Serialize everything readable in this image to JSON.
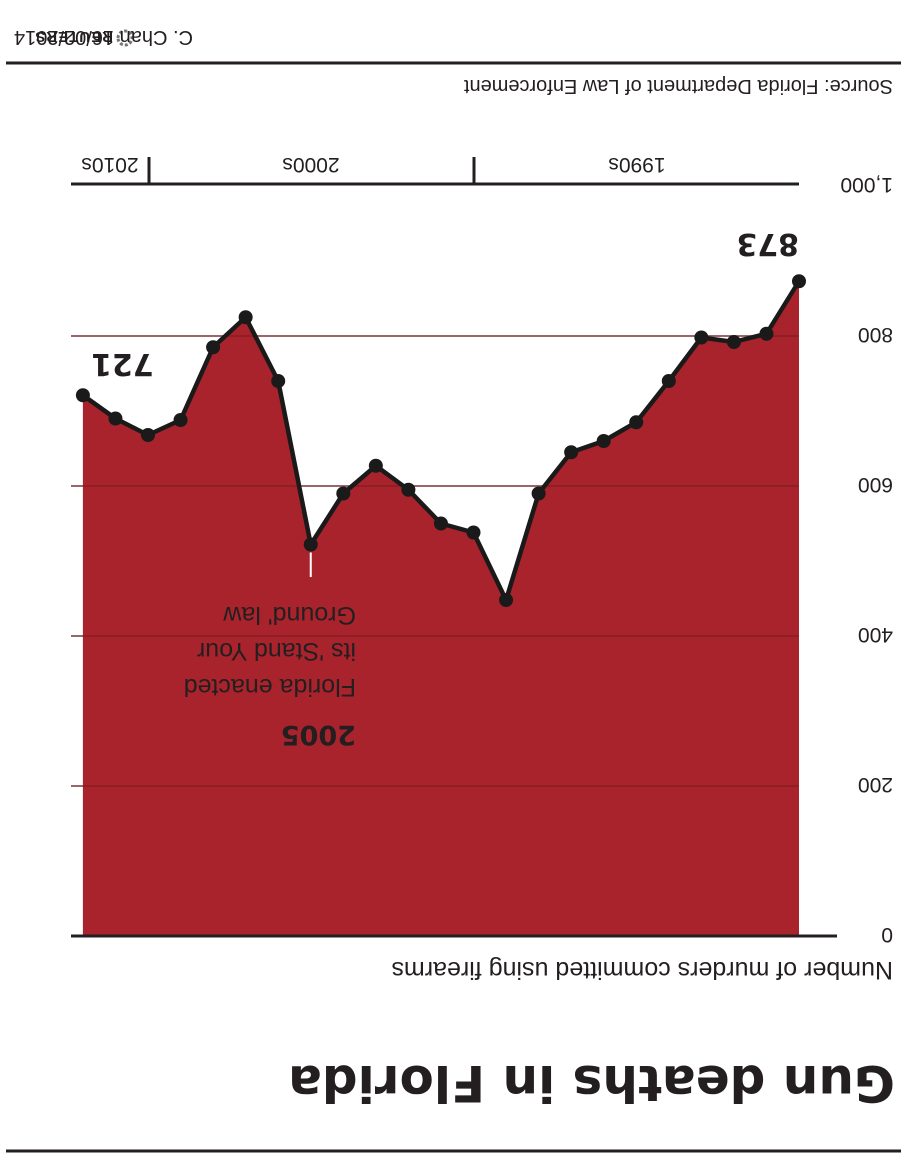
{
  "chart_data": {
    "type": "area",
    "title": "Gun deaths in Florida",
    "subtitle": "Number of murders committed using firearms",
    "x": [
      1990,
      1991,
      1992,
      1993,
      1994,
      1995,
      1996,
      1997,
      1998,
      1999,
      2000,
      2001,
      2002,
      2003,
      2004,
      2005,
      2006,
      2007,
      2008,
      2009,
      2010,
      2011,
      2012
    ],
    "values": [
      873,
      803,
      792,
      798,
      740,
      685,
      660,
      645,
      590,
      448,
      538,
      550,
      595,
      627,
      590,
      522,
      740,
      825,
      785,
      688,
      668,
      690,
      721
    ],
    "ylim": [
      0,
      1000
    ],
    "yticks": [
      0,
      200,
      400,
      600,
      800,
      "1,000"
    ],
    "decades": [
      "1990s",
      "2000s",
      "2010s"
    ],
    "grid": true,
    "colors": {
      "area": "#a8232b",
      "line": "#1a1a1a",
      "marker_fill": "#ffffff",
      "grid": "#bdbdbd",
      "axis": "#231f20"
    },
    "annotations": [
      {
        "year": "2005",
        "text": [
          "Florida enacted",
          "its 'Stand Your",
          "Ground' law"
        ]
      }
    ],
    "value_labels": [
      {
        "x": 1990,
        "value": "873"
      },
      {
        "x": 2012,
        "value": "721"
      }
    ]
  },
  "footer": {
    "source": "Source: Florida Department of Law Enforcement",
    "credit": "C. Chan 16/02/2014",
    "brand": "REUTERS"
  }
}
